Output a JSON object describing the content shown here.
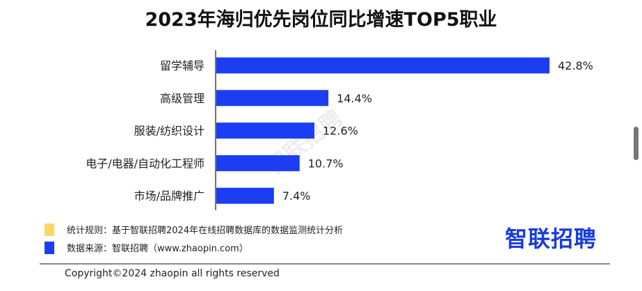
{
  "chart_data": {
    "type": "bar",
    "orientation": "horizontal",
    "title": "2023年海归优先岗位同比增速TOP5职业",
    "categories": [
      "留学辅导",
      "高级管理",
      "服装/纺织设计",
      "电子/电器/自动化工程师",
      "市场/品牌推广"
    ],
    "values": [
      42.8,
      14.4,
      12.6,
      10.7,
      7.4
    ],
    "labels": [
      "42.8%",
      "14.4%",
      "12.6%",
      "10.7%",
      "7.4%"
    ],
    "unit": "%",
    "xlim": [
      0,
      45
    ],
    "grid": false,
    "bar_color": "#1b3ef2"
  },
  "legend": [
    {
      "text": "统计规则：基于智联招聘2024年在线招聘数据库的数据监测统计分析",
      "color": "#ffd666"
    },
    {
      "text": "数据来源：智联招聘（www.zhaopin.com）",
      "color": "#1b3ef2"
    }
  ],
  "logo": "智联招聘",
  "watermark": "智联招聘",
  "copyright": "Copyright©2024 zhaopin all rights reserved"
}
